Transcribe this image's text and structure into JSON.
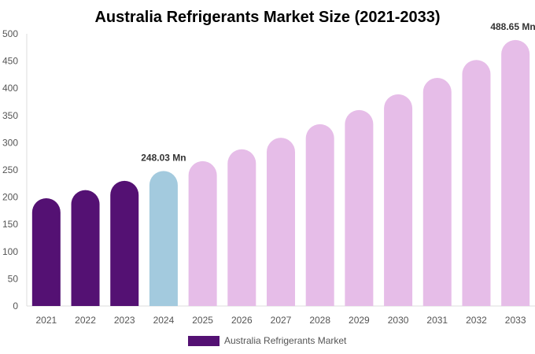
{
  "chart_data": {
    "type": "bar",
    "title": "Australia Refrigerants Market Size (2021-2033)",
    "xlabel": "",
    "ylabel": "",
    "ylim": [
      0,
      500
    ],
    "yticks": [
      0,
      50,
      100,
      150,
      200,
      250,
      300,
      350,
      400,
      450,
      500
    ],
    "grid": false,
    "legend_position": "bottom",
    "categories": [
      "2021",
      "2022",
      "2023",
      "2024",
      "2025",
      "2026",
      "2027",
      "2028",
      "2029",
      "2030",
      "2031",
      "2032",
      "2033"
    ],
    "series": [
      {
        "name": "Australia Refrigerants Market",
        "values": [
          198,
          213,
          230,
          248.03,
          266,
          288,
          309,
          334,
          360,
          389,
          419,
          452,
          488.65
        ]
      }
    ],
    "bar_colors": [
      "#541173",
      "#541173",
      "#541173",
      "#a3cade",
      "#e6bde8",
      "#e6bde8",
      "#e6bde8",
      "#e6bde8",
      "#e6bde8",
      "#e6bde8",
      "#e6bde8",
      "#e6bde8",
      "#e6bde8"
    ],
    "legend_color": "#541173",
    "data_labels": [
      {
        "category": "2024",
        "text": "248.03 Mn"
      },
      {
        "category": "2033",
        "text": "488.65 Mn"
      }
    ]
  }
}
